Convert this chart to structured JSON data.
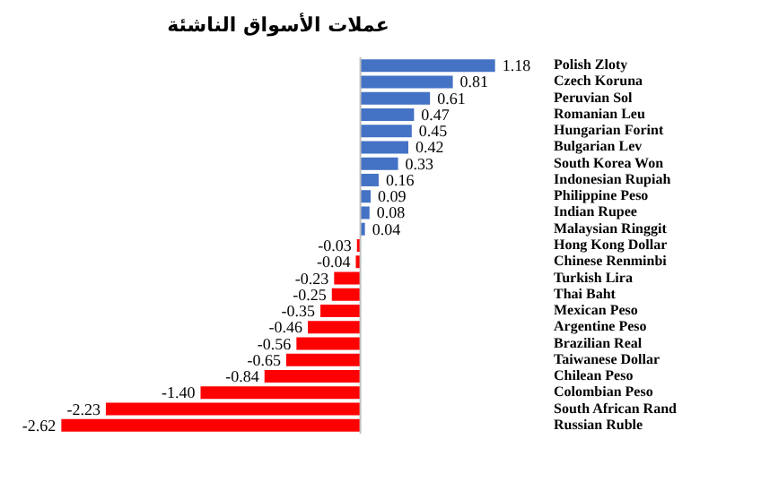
{
  "chart_data": {
    "type": "bar",
    "title": "عملات الأسواق الناشئة",
    "categories": [
      "Polish Zloty",
      "Czech Koruna",
      "Peruvian Sol",
      "Romanian Leu",
      "Hungarian Forint",
      "Bulgarian Lev",
      "South Korea Won",
      "Indonesian Rupiah",
      "Philippine Peso",
      "Indian Rupee",
      "Malaysian Ringgit",
      "Hong Kong Dollar",
      "Chinese Renminbi",
      "Turkish Lira",
      "Thai Baht",
      "Mexican Peso",
      "Argentine Peso",
      "Brazilian Real",
      "Taiwanese Dollar",
      "Chilean Peso",
      "Colombian Peso",
      "South African Rand",
      "Russian Ruble"
    ],
    "values": [
      1.18,
      0.81,
      0.61,
      0.47,
      0.45,
      0.42,
      0.33,
      0.16,
      0.09,
      0.08,
      0.04,
      -0.03,
      -0.04,
      -0.23,
      -0.25,
      -0.35,
      -0.46,
      -0.56,
      -0.65,
      -0.84,
      -1.4,
      -2.23,
      -2.62
    ],
    "value_labels": [
      "1.18",
      "0.81",
      "0.61",
      "0.47",
      "0.45",
      "0.42",
      "0.33",
      "0.16",
      "0.09",
      "0.08",
      "0.04",
      "-0.03",
      "-0.04",
      "-0.23",
      "-0.25",
      "-0.35",
      "-0.46",
      "-0.56",
      "-0.65",
      "-0.84",
      "-1.40",
      "-2.23",
      "-2.62"
    ],
    "colors": [
      "#4472c4",
      "#4472c4",
      "#4472c4",
      "#4472c4",
      "#4472c4",
      "#4472c4",
      "#4472c4",
      "#4472c4",
      "#4472c4",
      "#4472c4",
      "#4472c4",
      "#ff0000",
      "#ff0000",
      "#ff0000",
      "#ff0000",
      "#ff0000",
      "#ff0000",
      "#ff0000",
      "#ff0000",
      "#ff0000",
      "#ff0000",
      "#ff0000",
      "#ff0000"
    ],
    "orientation": "horizontal"
  }
}
